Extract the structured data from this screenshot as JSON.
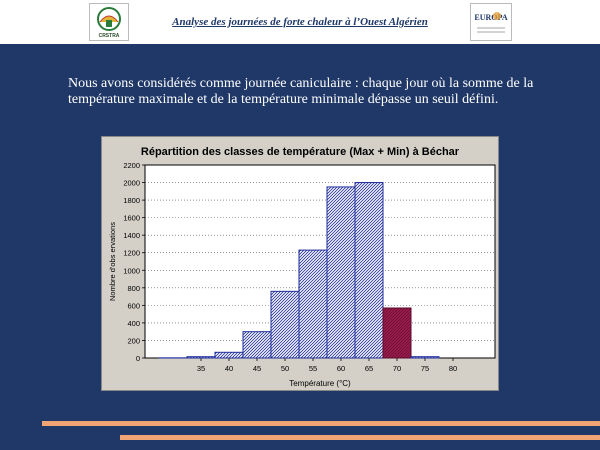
{
  "header": {
    "title": "Analyse des journées de forte chaleur à l’Ouest Algérien",
    "logo_left_text": "CRSTRA",
    "logo_right_text": "EUROPA"
  },
  "intro_text": "Nous avons considérés comme journée caniculaire : chaque jour où la somme de la température maximale et de la température minimale dépasse un seuil défini.",
  "colors": {
    "background": "#1f3868",
    "bar_fill": "#ffffff",
    "bar_hatch": "#1f2e9c",
    "bar_highlight": "#9c1c4c",
    "plot_bg": "#ffffff",
    "stripe": "#f2a574"
  },
  "chart_data": {
    "type": "bar",
    "title": "Répartition des classes de température (Max + Min) à Béchar",
    "xlabel": "Température (°C)",
    "ylabel": "Nombre d'obs ervations",
    "x_ticks": [
      35,
      40,
      45,
      50,
      55,
      60,
      65,
      70,
      75,
      80
    ],
    "y_ticks": [
      0,
      200,
      400,
      600,
      800,
      1000,
      1200,
      1400,
      1600,
      1800,
      2000,
      2200
    ],
    "xlim": [
      25,
      87.5
    ],
    "ylim": [
      0,
      2200
    ],
    "grid": true,
    "bins": [
      {
        "from": 27.5,
        "to": 32.5,
        "value": 2,
        "highlight": false
      },
      {
        "from": 32.5,
        "to": 37.5,
        "value": 15,
        "highlight": false
      },
      {
        "from": 37.5,
        "to": 42.5,
        "value": 65,
        "highlight": false
      },
      {
        "from": 42.5,
        "to": 47.5,
        "value": 300,
        "highlight": false
      },
      {
        "from": 47.5,
        "to": 52.5,
        "value": 760,
        "highlight": false
      },
      {
        "from": 52.5,
        "to": 57.5,
        "value": 1230,
        "highlight": false
      },
      {
        "from": 57.5,
        "to": 62.5,
        "value": 1950,
        "highlight": false
      },
      {
        "from": 62.5,
        "to": 67.5,
        "value": 2000,
        "highlight": false
      },
      {
        "from": 67.5,
        "to": 72.5,
        "value": 570,
        "highlight": true
      },
      {
        "from": 72.5,
        "to": 77.5,
        "value": 15,
        "highlight": false
      }
    ]
  }
}
